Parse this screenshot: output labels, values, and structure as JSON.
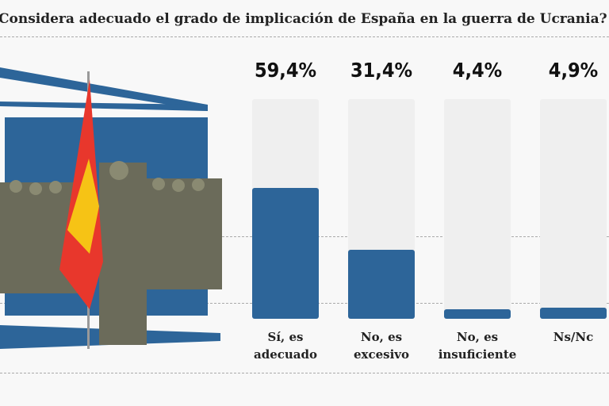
{
  "title": "¿Considera adecuado el grado de implicación de España en la guerra de Ucrania?",
  "chart_data": {
    "type": "bar",
    "title": "¿Considera adecuado el grado de implicación de España en la guerra de Ucrania?",
    "categories": [
      [
        "Sí, es",
        "adecuado"
      ],
      [
        "No, es",
        "excesivo"
      ],
      [
        "No, es",
        "insuficiente"
      ],
      [
        "Ns/Nc",
        ""
      ]
    ],
    "values": [
      59.4,
      31.4,
      4.4,
      4.9
    ],
    "value_labels": [
      "59,4%",
      "31,4%",
      "4,4%",
      "4,9%"
    ],
    "ylim": [
      0,
      100
    ],
    "grid": true,
    "colors": {
      "bar": "#2d6599",
      "track": "#efefef",
      "flag_red": "#e8372c",
      "flag_yellow": "#f6c315"
    }
  }
}
